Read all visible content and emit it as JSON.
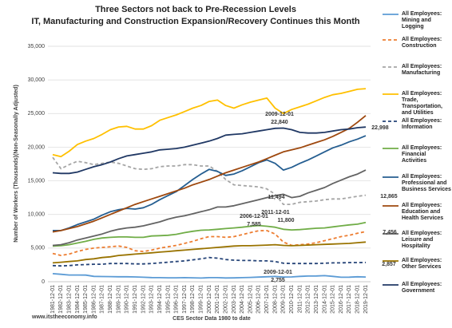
{
  "chart_data": {
    "type": "line",
    "title": "Three Sectors not back to Pre-Recession Levels",
    "subtitle": "IT, Manufacturing and Construction Expansion/Recovery Continues this Month",
    "y_label": "Number of Workers (Thousands)(Non-Seasonally Adjusted)",
    "x_label": "CES Sector Data 1980 to date",
    "source": "www.itstheeconomy.info",
    "grid": true,
    "categories": [
      "1981-12-01",
      "1982-12-01",
      "1983-12-01",
      "1984-12-01",
      "1985-12-01",
      "1986-12-01",
      "1987-12-01",
      "1988-12-01",
      "1989-12-01",
      "1990-12-01",
      "1991-12-01",
      "1992-12-01",
      "1993-12-01",
      "1994-12-01",
      "1995-12-01",
      "1996-12-01",
      "1997-12-01",
      "1998-12-01",
      "1999-12-01",
      "2000-12-01",
      "2001-12-01",
      "2002-12-01",
      "2003-12-01",
      "2004-12-01",
      "2005-12-01",
      "2006-12-01",
      "2007-12-01",
      "2008-12-01",
      "2009-12-01",
      "2010-12-01",
      "2011-12-01",
      "2012-12-01",
      "2013-12-01",
      "2014-12-01",
      "2015-12-01",
      "2016-12-01",
      "2017-12-01",
      "2018-12-01",
      "2019-12-01"
    ],
    "ylim": [
      0,
      35000
    ],
    "yticks": [
      0,
      {
        "value": 5000,
        "label": "5,000"
      },
      {
        "value": 10000,
        "label": "10,000"
      },
      {
        "value": 15000,
        "label": "15,000"
      },
      {
        "value": 20000,
        "label": "20,000"
      },
      {
        "value": 25000,
        "label": "25,000"
      },
      {
        "value": 30000,
        "label": "30,000"
      },
      {
        "value": 35000,
        "label": "35,000"
      }
    ],
    "series": [
      {
        "name": "All Employees: Mining and Logging",
        "color": "#5b9bd5",
        "dashed": false,
        "values": [
          1200,
          1100,
          1000,
          1000,
          980,
          800,
          770,
          760,
          730,
          740,
          710,
          660,
          620,
          600,
          580,
          580,
          600,
          580,
          540,
          600,
          600,
          560,
          570,
          600,
          640,
          690,
          740,
          780,
          700,
          710,
          790,
          840,
          860,
          900,
          800,
          670,
          680,
          740,
          700
        ]
      },
      {
        "name": "All Employees: Construction",
        "color": "#ed7d31",
        "dashed": true,
        "values": [
          4200,
          3900,
          4100,
          4500,
          4800,
          5000,
          5100,
          5200,
          5300,
          5100,
          4600,
          4500,
          4700,
          5000,
          5200,
          5400,
          5700,
          6000,
          6400,
          6700,
          6700,
          6600,
          6700,
          7000,
          7300,
          7585,
          7600,
          7100,
          5900,
          5400,
          5500,
          5600,
          5800,
          6100,
          6400,
          6700,
          6900,
          7200,
          7456
        ]
      },
      {
        "name": "All Employees: Manufacturing",
        "color": "#a5a5a5",
        "dashed": true,
        "values": [
          18500,
          16800,
          17400,
          17900,
          17700,
          17400,
          17600,
          17800,
          17600,
          17200,
          16800,
          16700,
          16800,
          17100,
          17200,
          17200,
          17400,
          17400,
          17200,
          17200,
          16400,
          15200,
          14400,
          14300,
          14200,
          14100,
          13800,
          13000,
          11494,
          11500,
          11800,
          11900,
          12000,
          12200,
          12300,
          12300,
          12500,
          12700,
          12865
        ]
      },
      {
        "name": "All Employees: Trade, Transportation, and Utilities",
        "color": "#ffc000",
        "dashed": false,
        "values": [
          18900,
          18600,
          19400,
          20400,
          20900,
          21300,
          21900,
          22600,
          23000,
          23100,
          22700,
          22700,
          23200,
          24000,
          24400,
          24800,
          25300,
          25800,
          26200,
          26800,
          27000,
          26200,
          25800,
          26300,
          26700,
          27000,
          27300,
          25800,
          25000,
          25600,
          26000,
          26400,
          26900,
          27400,
          27800,
          28000,
          28300,
          28600,
          28700
        ]
      },
      {
        "name": "All Employees: Information",
        "color": "#264478",
        "dashed": true,
        "values": [
          2400,
          2350,
          2400,
          2500,
          2550,
          2600,
          2600,
          2700,
          2700,
          2700,
          2650,
          2650,
          2700,
          2800,
          2900,
          3000,
          3100,
          3250,
          3400,
          3600,
          3500,
          3300,
          3200,
          3150,
          3150,
          3100,
          3100,
          3000,
          2755,
          2700,
          2700,
          2700,
          2700,
          2750,
          2800,
          2800,
          2850,
          2850,
          2857
        ]
      },
      {
        "name": "All Employees: Financial Activities",
        "color": "#70ad47",
        "dashed": false,
        "values": [
          5300,
          5350,
          5500,
          5750,
          6000,
          6300,
          6500,
          6600,
          6650,
          6650,
          6600,
          6600,
          6800,
          6850,
          6900,
          7050,
          7300,
          7500,
          7650,
          7700,
          7800,
          7900,
          8000,
          8100,
          8250,
          8350,
          8250,
          8100,
          7800,
          7700,
          7750,
          7850,
          7950,
          8000,
          8150,
          8300,
          8450,
          8550,
          8800
        ]
      },
      {
        "name": "All Employees: Professional and Business Services",
        "color": "#255e91",
        "dashed": false,
        "values": [
          7600,
          7600,
          8000,
          8500,
          8900,
          9300,
          9900,
          10400,
          10700,
          10900,
          10800,
          11000,
          11500,
          12200,
          12800,
          13400,
          14300,
          15200,
          16000,
          16700,
          16400,
          15800,
          16000,
          16500,
          17100,
          17700,
          18100,
          17600,
          16600,
          17000,
          17600,
          18100,
          18700,
          19300,
          19900,
          20300,
          20800,
          21200,
          21700
        ]
      },
      {
        "name": "All Employees: Education and Health Services",
        "color": "#9e480e",
        "dashed": false,
        "values": [
          7400,
          7600,
          7900,
          8200,
          8600,
          9000,
          9500,
          10000,
          10500,
          11000,
          11500,
          11900,
          12300,
          12700,
          13100,
          13500,
          13900,
          14400,
          14800,
          15200,
          15700,
          16200,
          16600,
          17000,
          17400,
          17800,
          18300,
          18800,
          19300,
          19600,
          19900,
          20300,
          20700,
          21100,
          21600,
          22200,
          22800,
          23700,
          24700
        ]
      },
      {
        "name": "All Employees: Leisure and Hospitality",
        "color": "#636363",
        "dashed": false,
        "values": [
          5400,
          5500,
          5800,
          6200,
          6500,
          6800,
          7100,
          7500,
          7800,
          8000,
          8100,
          8300,
          8600,
          8900,
          9300,
          9600,
          9800,
          10100,
          10400,
          10700,
          11100,
          11100,
          11300,
          11600,
          11900,
          12200,
          12500,
          12800,
          13000,
          12500,
          12700,
          13200,
          13600,
          14000,
          14600,
          15100,
          15600,
          16000,
          16600
        ]
      },
      {
        "name": "All Employees: Other Services",
        "color": "#997300",
        "dashed": false,
        "values": [
          2800,
          2900,
          3000,
          3100,
          3300,
          3400,
          3600,
          3700,
          3900,
          4000,
          4100,
          4200,
          4300,
          4400,
          4500,
          4600,
          4700,
          4800,
          4900,
          5000,
          5100,
          5200,
          5300,
          5350,
          5350,
          5400,
          5450,
          5500,
          5400,
          5350,
          5400,
          5450,
          5500,
          5550,
          5600,
          5650,
          5700,
          5800,
          5900
        ]
      },
      {
        "name": "All Employees: Government",
        "color": "#203864",
        "dashed": false,
        "values": [
          16200,
          16100,
          16100,
          16300,
          16700,
          17100,
          17400,
          17800,
          18300,
          18700,
          18900,
          19100,
          19300,
          19600,
          19700,
          19800,
          20000,
          20300,
          20600,
          20900,
          21300,
          21800,
          21900,
          22000,
          22200,
          22400,
          22600,
          22800,
          22840,
          22600,
          22200,
          22100,
          22100,
          22200,
          22400,
          22600,
          22700,
          22900,
          22998
        ]
      }
    ],
    "annotations": [
      "2009-12-01",
      "22,840",
      "22,998",
      "11,494",
      "2011-12-01",
      "11,800",
      "12,865",
      "2006-12-01",
      "7,585",
      "7,456",
      "2,857",
      "2009-12-01",
      "2,755"
    ]
  }
}
